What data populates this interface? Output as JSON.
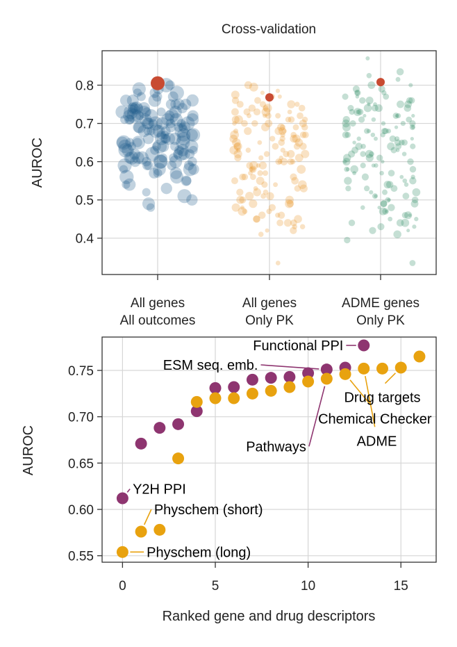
{
  "chart_data": [
    {
      "type": "scatter",
      "title": "Cross-validation",
      "xlabel": "",
      "ylabel": "AUROC",
      "ylim": [
        0.305,
        0.89
      ],
      "yticks": [
        0.4,
        0.5,
        0.6,
        0.7,
        0.8
      ],
      "grid": true,
      "categories": [
        [
          "All genes",
          "All outcomes"
        ],
        [
          "All genes",
          "Only PK"
        ],
        [
          "ADME genes",
          "Only PK"
        ]
      ],
      "series": [
        {
          "color": "#1f5f8b",
          "highlight_color": "#c84b32",
          "highlight_value": 0.805,
          "values": [
            0.79,
            0.78,
            0.77,
            0.8,
            0.76,
            0.79,
            0.78,
            0.75,
            0.74,
            0.76,
            0.77,
            0.75,
            0.73,
            0.74,
            0.72,
            0.71,
            0.73,
            0.75,
            0.74,
            0.72,
            0.7,
            0.71,
            0.73,
            0.69,
            0.7,
            0.72,
            0.71,
            0.68,
            0.7,
            0.69,
            0.74,
            0.73,
            0.72,
            0.71,
            0.7,
            0.69,
            0.68,
            0.67,
            0.66,
            0.65,
            0.68,
            0.67,
            0.66,
            0.65,
            0.64,
            0.63,
            0.66,
            0.65,
            0.64,
            0.63,
            0.62,
            0.61,
            0.64,
            0.63,
            0.62,
            0.61,
            0.6,
            0.59,
            0.62,
            0.61,
            0.6,
            0.59,
            0.58,
            0.57,
            0.6,
            0.59,
            0.58,
            0.56,
            0.55,
            0.54,
            0.53,
            0.52,
            0.51,
            0.5,
            0.49,
            0.48,
            0.7,
            0.72,
            0.74,
            0.68,
            0.66,
            0.64,
            0.76,
            0.73,
            0.71,
            0.69,
            0.67,
            0.65,
            0.63,
            0.61,
            0.72,
            0.74,
            0.7,
            0.68,
            0.66,
            0.64,
            0.62,
            0.6,
            0.58,
            0.78,
            0.75,
            0.73,
            0.71,
            0.69,
            0.67,
            0.65,
            0.63,
            0.61,
            0.59,
            0.57,
            0.55,
            0.8,
            0.77,
            0.74,
            0.72,
            0.7,
            0.68,
            0.66,
            0.64,
            0.62,
            0.6,
            0.58,
            0.56,
            0.54,
            0.76,
            0.73,
            0.71,
            0.69,
            0.67,
            0.65,
            0.63,
            0.61,
            0.59,
            0.57,
            0.72,
            0.7,
            0.68,
            0.66,
            0.64,
            0.62,
            0.6
          ]
        },
        {
          "color": "#e8962a",
          "highlight_color": "#c84b32",
          "highlight_value": 0.768,
          "values": [
            0.795,
            0.785,
            0.775,
            0.8,
            0.77,
            0.76,
            0.75,
            0.74,
            0.73,
            0.72,
            0.71,
            0.7,
            0.69,
            0.68,
            0.67,
            0.66,
            0.65,
            0.64,
            0.63,
            0.62,
            0.61,
            0.6,
            0.59,
            0.58,
            0.57,
            0.56,
            0.55,
            0.54,
            0.53,
            0.52,
            0.51,
            0.5,
            0.49,
            0.48,
            0.47,
            0.46,
            0.45,
            0.44,
            0.43,
            0.42,
            0.75,
            0.74,
            0.73,
            0.72,
            0.71,
            0.7,
            0.69,
            0.68,
            0.67,
            0.66,
            0.65,
            0.64,
            0.63,
            0.62,
            0.61,
            0.6,
            0.59,
            0.58,
            0.57,
            0.56,
            0.55,
            0.54,
            0.53,
            0.52,
            0.51,
            0.5,
            0.49,
            0.48,
            0.47,
            0.46,
            0.45,
            0.44,
            0.43,
            0.78,
            0.76,
            0.74,
            0.72,
            0.7,
            0.68,
            0.66,
            0.64,
            0.62,
            0.6,
            0.58,
            0.56,
            0.54,
            0.52,
            0.5,
            0.48,
            0.46,
            0.44,
            0.42,
            0.41,
            0.335,
            0.77,
            0.75,
            0.73,
            0.71,
            0.69,
            0.67,
            0.65,
            0.63,
            0.61,
            0.59,
            0.57,
            0.55,
            0.53,
            0.51,
            0.49,
            0.47,
            0.45,
            0.72,
            0.7,
            0.68,
            0.66,
            0.64,
            0.62,
            0.6,
            0.58,
            0.56,
            0.73,
            0.71,
            0.69,
            0.67,
            0.65,
            0.63,
            0.61,
            0.59,
            0.74,
            0.72,
            0.7,
            0.68,
            0.66,
            0.64,
            0.62,
            0.6,
            0.75,
            0.73,
            0.71,
            0.69,
            0.67
          ]
        },
        {
          "color": "#2e8b64",
          "highlight_color": "#c84b32",
          "highlight_value": 0.808,
          "values": [
            0.87,
            0.835,
            0.825,
            0.815,
            0.8,
            0.79,
            0.78,
            0.77,
            0.76,
            0.75,
            0.74,
            0.73,
            0.72,
            0.71,
            0.7,
            0.69,
            0.68,
            0.67,
            0.66,
            0.65,
            0.64,
            0.63,
            0.62,
            0.61,
            0.6,
            0.59,
            0.58,
            0.57,
            0.56,
            0.55,
            0.54,
            0.53,
            0.52,
            0.51,
            0.5,
            0.49,
            0.48,
            0.47,
            0.46,
            0.45,
            0.44,
            0.43,
            0.42,
            0.41,
            0.395,
            0.335,
            0.8,
            0.78,
            0.76,
            0.74,
            0.72,
            0.7,
            0.68,
            0.66,
            0.64,
            0.62,
            0.6,
            0.58,
            0.56,
            0.54,
            0.52,
            0.5,
            0.48,
            0.46,
            0.44,
            0.42,
            0.79,
            0.77,
            0.75,
            0.73,
            0.71,
            0.69,
            0.67,
            0.65,
            0.63,
            0.61,
            0.59,
            0.57,
            0.55,
            0.53,
            0.51,
            0.49,
            0.47,
            0.45,
            0.43,
            0.78,
            0.76,
            0.74,
            0.72,
            0.7,
            0.68,
            0.66,
            0.64,
            0.62,
            0.6,
            0.58,
            0.56,
            0.54,
            0.52,
            0.5,
            0.48,
            0.46,
            0.44,
            0.77,
            0.75,
            0.73,
            0.71,
            0.69,
            0.67,
            0.65,
            0.63,
            0.61,
            0.59,
            0.57,
            0.55,
            0.53,
            0.51,
            0.49,
            0.47,
            0.74,
            0.72,
            0.7,
            0.68,
            0.66,
            0.64,
            0.62,
            0.6,
            0.58,
            0.76,
            0.74,
            0.72,
            0.7,
            0.68,
            0.66,
            0.64,
            0.62,
            0.75,
            0.73,
            0.71,
            0.69,
            0.67,
            0.65
          ]
        }
      ]
    },
    {
      "type": "scatter",
      "title": "",
      "xlabel": "Ranked gene and drug descriptors",
      "ylabel": "AUROC",
      "xlim": [
        -1.1,
        16.9
      ],
      "ylim": [
        0.543,
        0.786
      ],
      "xticks": [
        0,
        5,
        10,
        15
      ],
      "yticks": [
        0.55,
        0.6,
        0.65,
        0.7,
        0.75
      ],
      "grid": true,
      "series": [
        {
          "color": "#8e3570",
          "points": [
            [
              0,
              0.612
            ],
            [
              1,
              0.671
            ],
            [
              2,
              0.688
            ],
            [
              3,
              0.692
            ],
            [
              4,
              0.706
            ],
            [
              5,
              0.731
            ],
            [
              6,
              0.732
            ],
            [
              7,
              0.74
            ],
            [
              8,
              0.742
            ],
            [
              9,
              0.743
            ],
            [
              10,
              0.747
            ],
            [
              11,
              0.751
            ],
            [
              12,
              0.753
            ],
            [
              13,
              0.777
            ]
          ]
        },
        {
          "color": "#e8a20f",
          "points": [
            [
              0,
              0.554
            ],
            [
              1,
              0.576
            ],
            [
              2,
              0.578
            ],
            [
              3,
              0.655
            ],
            [
              4,
              0.716
            ],
            [
              5,
              0.72
            ],
            [
              6,
              0.72
            ],
            [
              7,
              0.725
            ],
            [
              8,
              0.728
            ],
            [
              9,
              0.732
            ],
            [
              10,
              0.738
            ],
            [
              11,
              0.741
            ],
            [
              12,
              0.746
            ],
            [
              13,
              0.752
            ],
            [
              14,
              0.752
            ],
            [
              15,
              0.753
            ],
            [
              16,
              0.765
            ]
          ]
        }
      ],
      "annotations": [
        {
          "text": "Functional PPI",
          "target": [
            13,
            0.777
          ],
          "text_at": [
            11.9,
            0.777
          ],
          "anchor": "end",
          "color": "#8e3570"
        },
        {
          "text": "ESM seq. emb.",
          "target": [
            11,
            0.751
          ],
          "text_at": [
            7.3,
            0.756
          ],
          "anchor": "end",
          "color": "#8e3570"
        },
        {
          "text": "Drug targets",
          "target": [
            15,
            0.753
          ],
          "text_at": [
            14,
            0.721
          ],
          "anchor": "middle",
          "color": "#e8a20f"
        },
        {
          "text": "Chemical Checker",
          "target": [
            12,
            0.746
          ],
          "text_at": [
            13.6,
            0.698
          ],
          "anchor": "middle",
          "color": "#e8a20f"
        },
        {
          "text": "Pathways",
          "target": [
            11,
            0.741
          ],
          "text_at": [
            9.9,
            0.668
          ],
          "anchor": "end",
          "color": "#8e3570"
        },
        {
          "text": "ADME",
          "target": [
            13,
            0.752
          ],
          "text_at": [
            13.7,
            0.674
          ],
          "anchor": "middle",
          "color": "#e8a20f"
        },
        {
          "text": "Y2H PPI",
          "target": [
            0,
            0.612
          ],
          "text_at": [
            0.55,
            0.622
          ],
          "anchor": "start",
          "color": "#8e3570"
        },
        {
          "text": "Physchem (short)",
          "target": [
            1,
            0.576
          ],
          "text_at": [
            1.7,
            0.6
          ],
          "anchor": "start",
          "color": "#e8a20f"
        },
        {
          "text": "Physchem (long)",
          "target": [
            0,
            0.554
          ],
          "text_at": [
            1.3,
            0.554
          ],
          "anchor": "start",
          "color": "#e8a20f"
        }
      ]
    }
  ]
}
